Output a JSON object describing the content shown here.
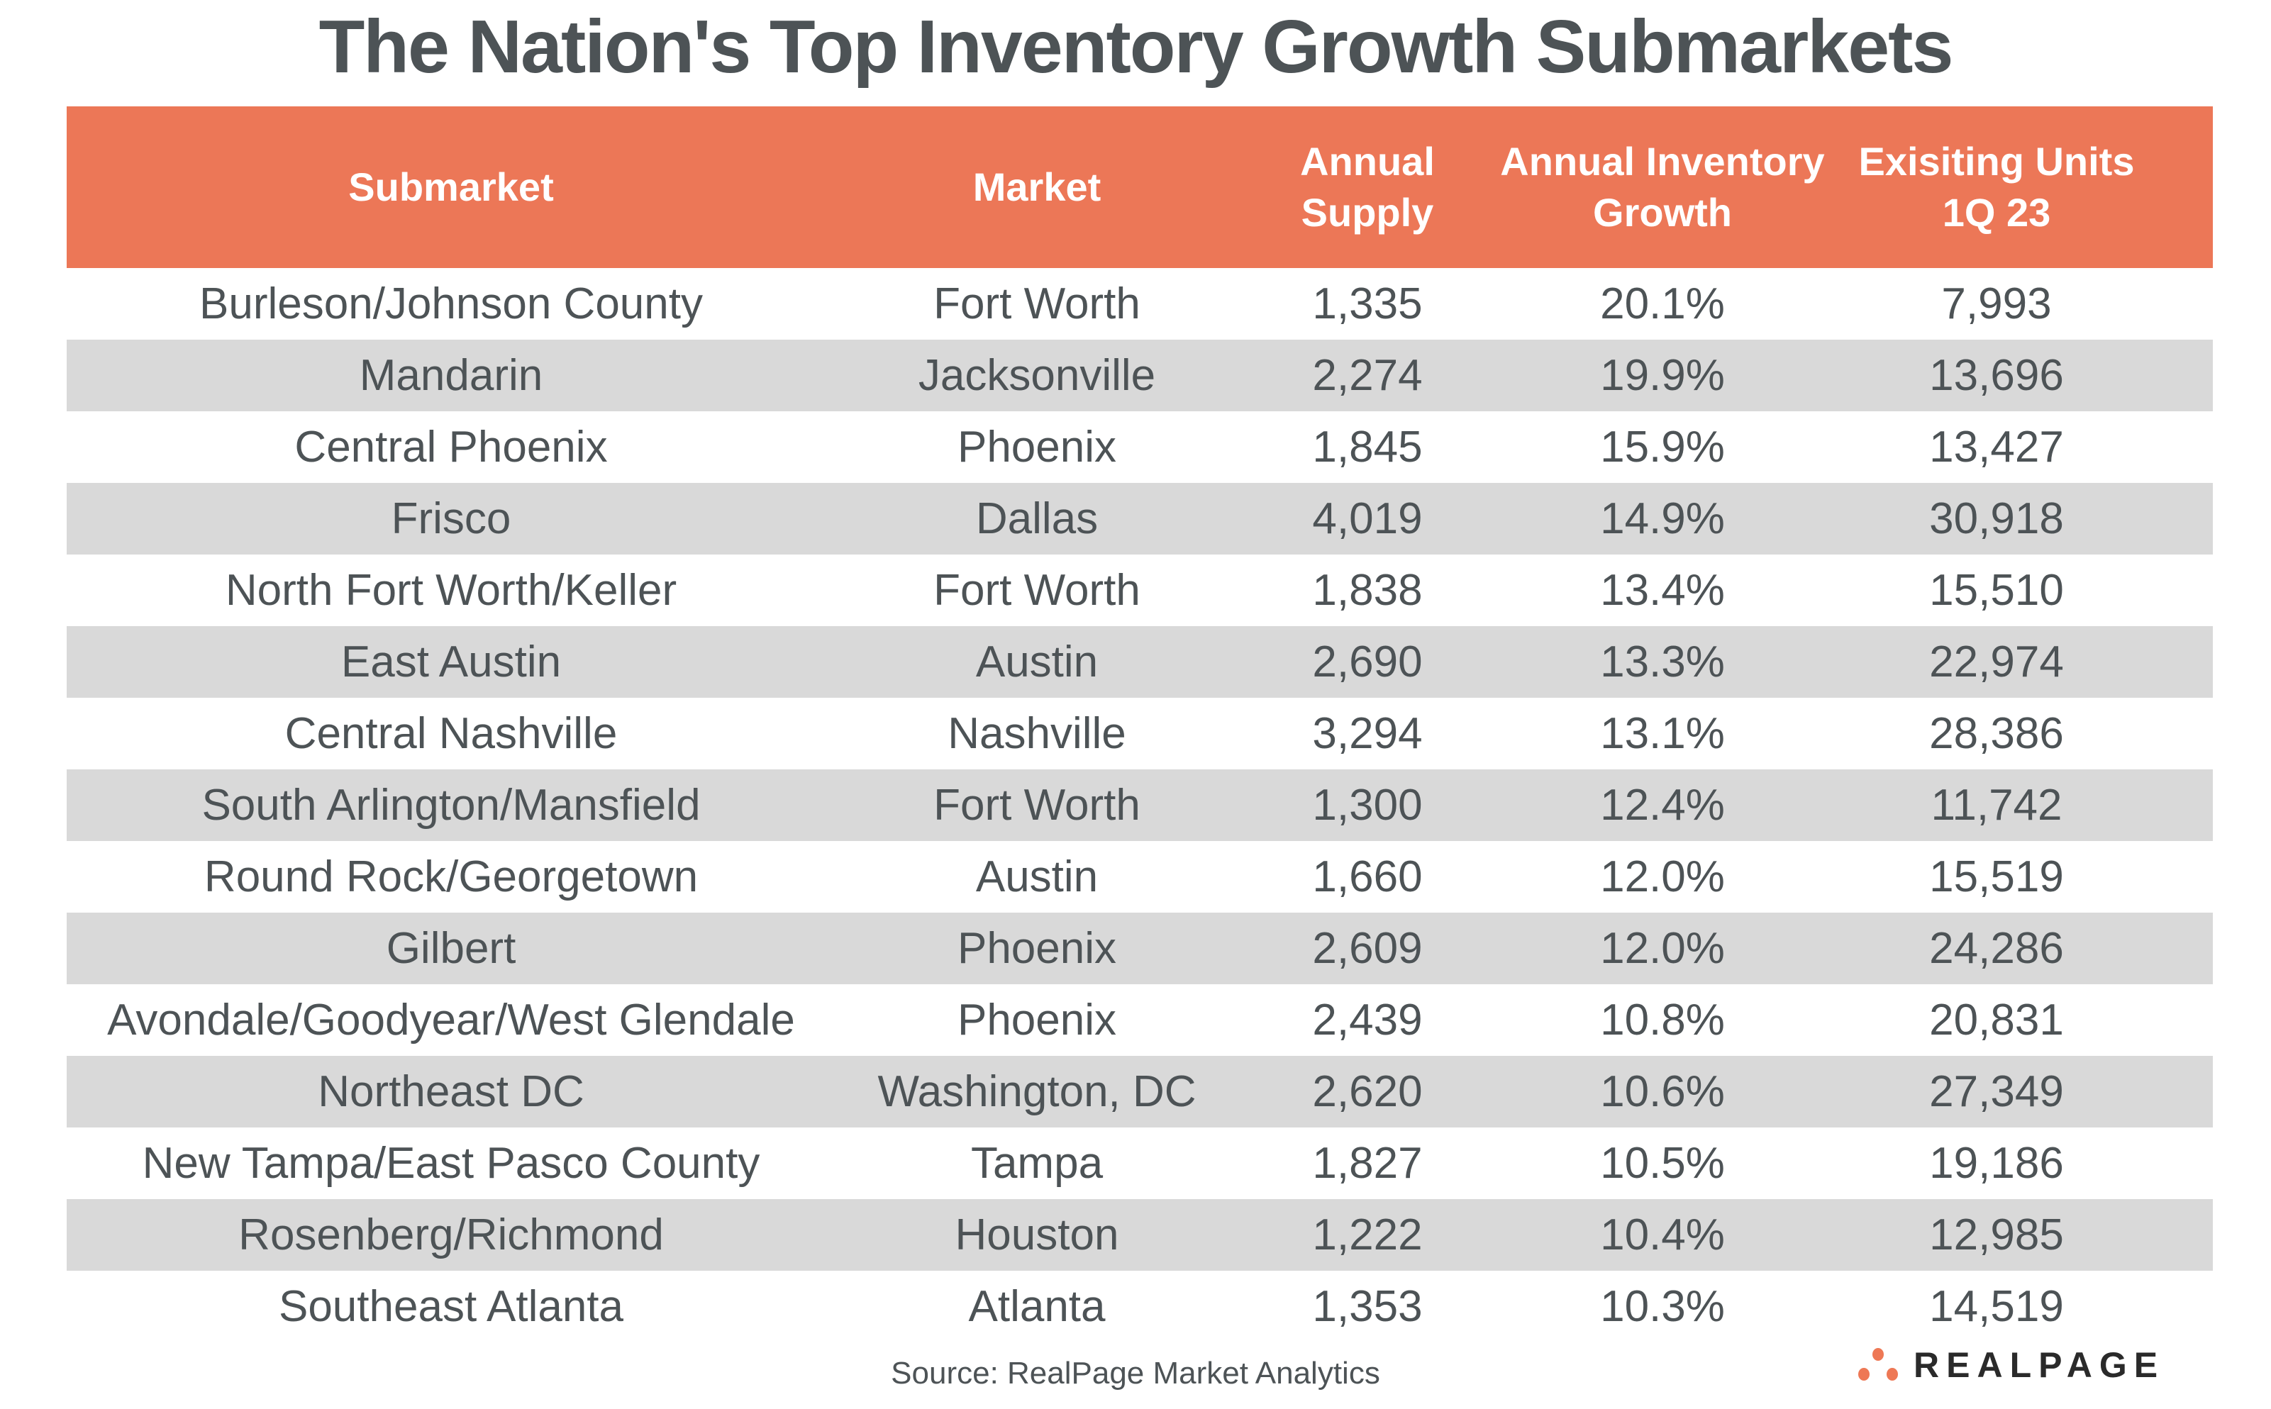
{
  "title": "The Nation's Top Inventory Growth Submarkets",
  "columns": [
    "Submarket",
    "Market",
    "Annual Supply",
    "Annual Inventory Growth",
    "Exisiting Units 1Q 23"
  ],
  "column_lines": [
    [
      "Submarket"
    ],
    [
      "Market"
    ],
    [
      "Annual",
      "Supply"
    ],
    [
      "Annual Inventory",
      "Growth"
    ],
    [
      "Exisiting Units",
      "1Q 23"
    ]
  ],
  "rows": [
    [
      "Burleson/Johnson County",
      "Fort Worth",
      "1,335",
      "20.1%",
      "7,993"
    ],
    [
      "Mandarin",
      "Jacksonville",
      "2,274",
      "19.9%",
      "13,696"
    ],
    [
      "Central Phoenix",
      "Phoenix",
      "1,845",
      "15.9%",
      "13,427"
    ],
    [
      "Frisco",
      "Dallas",
      "4,019",
      "14.9%",
      "30,918"
    ],
    [
      "North Fort Worth/Keller",
      "Fort Worth",
      "1,838",
      "13.4%",
      "15,510"
    ],
    [
      "East Austin",
      "Austin",
      "2,690",
      "13.3%",
      "22,974"
    ],
    [
      "Central Nashville",
      "Nashville",
      "3,294",
      "13.1%",
      "28,386"
    ],
    [
      "South Arlington/Mansfield",
      "Fort Worth",
      "1,300",
      "12.4%",
      "11,742"
    ],
    [
      "Round Rock/Georgetown",
      "Austin",
      "1,660",
      "12.0%",
      "15,519"
    ],
    [
      "Gilbert",
      "Phoenix",
      "2,609",
      "12.0%",
      "24,286"
    ],
    [
      "Avondale/Goodyear/West Glendale",
      "Phoenix",
      "2,439",
      "10.8%",
      "20,831"
    ],
    [
      "Northeast DC",
      "Washington, DC",
      "2,620",
      "10.6%",
      "27,349"
    ],
    [
      "New Tampa/East Pasco County",
      "Tampa",
      "1,827",
      "10.5%",
      "19,186"
    ],
    [
      "Rosenberg/Richmond",
      "Houston",
      "1,222",
      "10.4%",
      "12,985"
    ],
    [
      "Southeast Atlanta",
      "Atlanta",
      "1,353",
      "10.3%",
      "14,519"
    ]
  ],
  "source": "Source: RealPage Market Analytics",
  "logo": {
    "text": "REALPAGE",
    "icon": "three-dots-logo-icon"
  },
  "colors": {
    "header": "#ec7757",
    "stripe": "#d9d9d9",
    "text": "#4d5356"
  }
}
